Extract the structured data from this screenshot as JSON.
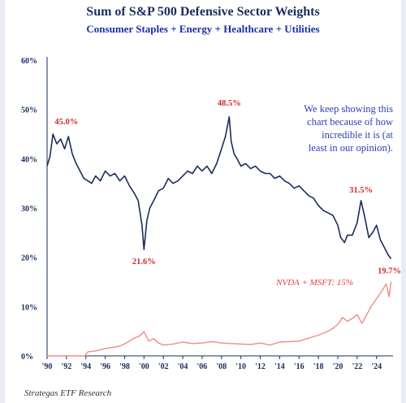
{
  "chart_data": {
    "type": "line",
    "title": "Sum of S&P 500 Defensive Sector Weights",
    "subtitle": "Consumer Staples + Energy + Healthcare + Utilities",
    "source": "Strategas ETF Research",
    "ylim": [
      0,
      60
    ],
    "xlim": [
      1990,
      2025.7
    ],
    "y_ticks": [
      "0%",
      "10%",
      "20%",
      "30%",
      "40%",
      "50%",
      "60%"
    ],
    "y_tick_values": [
      0,
      10,
      20,
      30,
      40,
      50,
      60
    ],
    "x_ticks": [
      "'90",
      "'92",
      "'94",
      "'96",
      "'98",
      "'00",
      "'02",
      "'04",
      "'06",
      "'08",
      "'10",
      "'12",
      "'14",
      "'16",
      "'18",
      "'20",
      "'22",
      "'24"
    ],
    "x_tick_values": [
      1990,
      1992,
      1994,
      1996,
      1998,
      2000,
      2002,
      2004,
      2006,
      2008,
      2010,
      2012,
      2014,
      2016,
      2018,
      2020,
      2022,
      2024
    ],
    "grid": false,
    "series": [
      {
        "name": "Defensive sector weights",
        "color": "#1a2d5c",
        "x": [
          1990.0,
          1990.3,
          1990.6,
          1991.0,
          1991.4,
          1991.8,
          1992.2,
          1992.6,
          1993.0,
          1993.4,
          1993.8,
          1994.2,
          1994.6,
          1995.0,
          1995.5,
          1996.0,
          1996.5,
          1997.0,
          1997.5,
          1998.0,
          1998.5,
          1999.0,
          1999.4,
          1999.8,
          2000.0,
          2000.3,
          2000.6,
          2001.0,
          2001.5,
          2002.0,
          2002.5,
          2003.0,
          2003.5,
          2004.0,
          2004.5,
          2005.0,
          2005.5,
          2006.0,
          2006.5,
          2007.0,
          2007.5,
          2008.0,
          2008.4,
          2008.8,
          2009.0,
          2009.3,
          2009.6,
          2010.0,
          2010.5,
          2011.0,
          2011.5,
          2012.0,
          2012.5,
          2013.0,
          2013.5,
          2014.0,
          2014.5,
          2015.0,
          2015.5,
          2016.0,
          2016.5,
          2017.0,
          2017.5,
          2018.0,
          2018.5,
          2019.0,
          2019.5,
          2020.0,
          2020.3,
          2020.7,
          2021.0,
          2021.5,
          2022.0,
          2022.4,
          2022.8,
          2023.2,
          2023.6,
          2024.0,
          2024.4,
          2024.8,
          2025.2,
          2025.5
        ],
        "values": [
          38.5,
          40.5,
          45.0,
          43.0,
          44.0,
          42.0,
          44.5,
          41.0,
          39.0,
          37.5,
          36.0,
          35.5,
          35.0,
          36.5,
          35.5,
          37.5,
          36.5,
          37.0,
          35.5,
          36.5,
          34.5,
          33.0,
          31.5,
          26.5,
          21.6,
          27.5,
          30.0,
          31.5,
          33.5,
          34.0,
          36.0,
          35.0,
          35.5,
          36.5,
          37.5,
          37.0,
          38.5,
          37.5,
          38.5,
          37.0,
          39.0,
          42.0,
          44.5,
          48.5,
          43.5,
          41.0,
          40.0,
          38.5,
          39.0,
          38.0,
          38.5,
          37.5,
          37.0,
          37.0,
          36.0,
          36.5,
          35.5,
          35.0,
          34.0,
          34.5,
          33.5,
          32.5,
          32.0,
          30.5,
          29.5,
          29.0,
          28.5,
          26.5,
          24.0,
          23.0,
          24.5,
          24.5,
          27.0,
          31.5,
          28.0,
          24.0,
          25.0,
          26.5,
          23.5,
          22.0,
          20.5,
          19.7
        ]
      },
      {
        "name": "NVDA + MSFT",
        "color": "#f08c86",
        "x": [
          1990.0,
          1993.0,
          1993.9,
          1994.2,
          1995.0,
          1996.0,
          1997.0,
          1997.5,
          1998.0,
          1998.5,
          1999.0,
          1999.5,
          2000.0,
          2000.5,
          2001.0,
          2001.5,
          2002.0,
          2003.0,
          2004.0,
          2005.0,
          2006.0,
          2007.0,
          2008.0,
          2009.0,
          2010.0,
          2011.0,
          2012.0,
          2013.0,
          2014.0,
          2015.0,
          2016.0,
          2017.0,
          2018.0,
          2018.5,
          2019.0,
          2019.5,
          2020.0,
          2020.5,
          2021.0,
          2021.5,
          2022.0,
          2022.5,
          2023.0,
          2023.5,
          2024.0,
          2024.5,
          2025.0,
          2025.3,
          2025.5
        ],
        "values": [
          0,
          0,
          0,
          0.8,
          1.0,
          1.5,
          1.8,
          2.0,
          2.4,
          3.0,
          3.6,
          4.0,
          4.9,
          3.0,
          3.5,
          2.6,
          2.2,
          2.4,
          2.8,
          2.5,
          2.6,
          2.9,
          2.6,
          2.5,
          2.4,
          2.3,
          2.6,
          2.2,
          2.8,
          2.9,
          3.0,
          3.6,
          4.2,
          4.6,
          5.0,
          5.6,
          6.4,
          7.8,
          7.0,
          7.6,
          8.4,
          6.6,
          8.4,
          10.2,
          11.6,
          13.0,
          14.6,
          12.0,
          15.0
        ]
      }
    ],
    "annotations": [
      {
        "text": "45.0%",
        "x": 1992.0,
        "y": 45.0
      },
      {
        "text": "48.5%",
        "x": 2008.8,
        "y": 48.5
      },
      {
        "text": "21.6%",
        "x": 2000.0,
        "y": 21.6
      },
      {
        "text": "31.5%",
        "x": 2022.4,
        "y": 31.5
      },
      {
        "text": "19.7%",
        "x": 2025.5,
        "y": 19.7
      }
    ],
    "note_lines": [
      "We keep showing this",
      "chart because of how",
      "incredible it is (at",
      "least in our opinion)."
    ],
    "nvda_label": "NVDA + MSFT: 15%"
  }
}
